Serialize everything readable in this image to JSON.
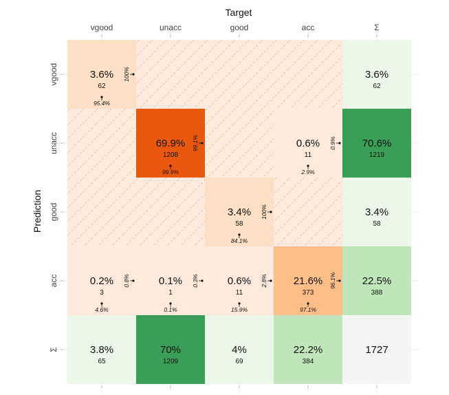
{
  "chart_data": {
    "type": "heatmap",
    "title": "",
    "xlabel": "Target",
    "ylabel": "Prediction",
    "columns": [
      "vgood",
      "unacc",
      "good",
      "acc",
      "Σ"
    ],
    "rows": [
      "vgood",
      "unacc",
      "good",
      "acc",
      "Σ"
    ],
    "cells": [
      [
        {
          "pct": "3.6%",
          "count": "62",
          "row_pct": "100%",
          "col_pct": "95.4%",
          "fill": "#fde0c5"
        },
        {
          "pct": "",
          "count": "",
          "row_pct": "",
          "col_pct": "",
          "fill": "#feeadc",
          "hatched": true
        },
        {
          "pct": "",
          "count": "",
          "row_pct": "",
          "col_pct": "",
          "fill": "#feeadc",
          "hatched": true
        },
        {
          "pct": "",
          "count": "",
          "row_pct": "",
          "col_pct": "",
          "fill": "#feeadc",
          "hatched": true
        },
        {
          "pct": "3.6%",
          "count": "62",
          "row_pct": "",
          "col_pct": "",
          "fill": "#edf7e9"
        }
      ],
      [
        {
          "pct": "",
          "count": "",
          "row_pct": "",
          "col_pct": "",
          "fill": "#feeadc",
          "hatched": true
        },
        {
          "pct": "69.9%",
          "count": "1208",
          "row_pct": "99.1%",
          "col_pct": "99.9%",
          "fill": "#e8590f"
        },
        {
          "pct": "",
          "count": "",
          "row_pct": "",
          "col_pct": "",
          "fill": "#feeadc",
          "hatched": true
        },
        {
          "pct": "0.6%",
          "count": "11",
          "row_pct": "0.9%",
          "col_pct": "2.9%",
          "fill": "#feeadc"
        },
        {
          "pct": "70.6%",
          "count": "1219",
          "row_pct": "",
          "col_pct": "",
          "fill": "#3a9e57"
        }
      ],
      [
        {
          "pct": "",
          "count": "",
          "row_pct": "",
          "col_pct": "",
          "fill": "#feeadc",
          "hatched": true
        },
        {
          "pct": "",
          "count": "",
          "row_pct": "",
          "col_pct": "",
          "fill": "#feeadc",
          "hatched": true
        },
        {
          "pct": "3.4%",
          "count": "58",
          "row_pct": "100%",
          "col_pct": "84.1%",
          "fill": "#fde0c5"
        },
        {
          "pct": "",
          "count": "",
          "row_pct": "",
          "col_pct": "",
          "fill": "#feeadc",
          "hatched": true
        },
        {
          "pct": "3.4%",
          "count": "58",
          "row_pct": "",
          "col_pct": "",
          "fill": "#edf7e9"
        }
      ],
      [
        {
          "pct": "0.2%",
          "count": "3",
          "row_pct": "0.8%",
          "col_pct": "4.6%",
          "fill": "#feeadc"
        },
        {
          "pct": "0.1%",
          "count": "1",
          "row_pct": "0.3%",
          "col_pct": "0.1%",
          "fill": "#feeadc"
        },
        {
          "pct": "0.6%",
          "count": "11",
          "row_pct": "2.8%",
          "col_pct": "15.9%",
          "fill": "#feeadc"
        },
        {
          "pct": "21.6%",
          "count": "373",
          "row_pct": "96.1%",
          "col_pct": "97.1%",
          "fill": "#fdbe8a"
        },
        {
          "pct": "22.5%",
          "count": "388",
          "row_pct": "",
          "col_pct": "",
          "fill": "#c0e5ba"
        }
      ],
      [
        {
          "pct": "3.8%",
          "count": "65",
          "row_pct": "",
          "col_pct": "",
          "fill": "#edf7e9"
        },
        {
          "pct": "70%",
          "count": "1209",
          "row_pct": "",
          "col_pct": "",
          "fill": "#3a9e57"
        },
        {
          "pct": "4%",
          "count": "69",
          "row_pct": "",
          "col_pct": "",
          "fill": "#edf7e9"
        },
        {
          "pct": "22.2%",
          "count": "384",
          "row_pct": "",
          "col_pct": "",
          "fill": "#c0e5ba"
        },
        {
          "pct": "",
          "count": "1727",
          "row_pct": "",
          "col_pct": "",
          "fill": "#f5f5f5",
          "total": true
        }
      ]
    ]
  }
}
